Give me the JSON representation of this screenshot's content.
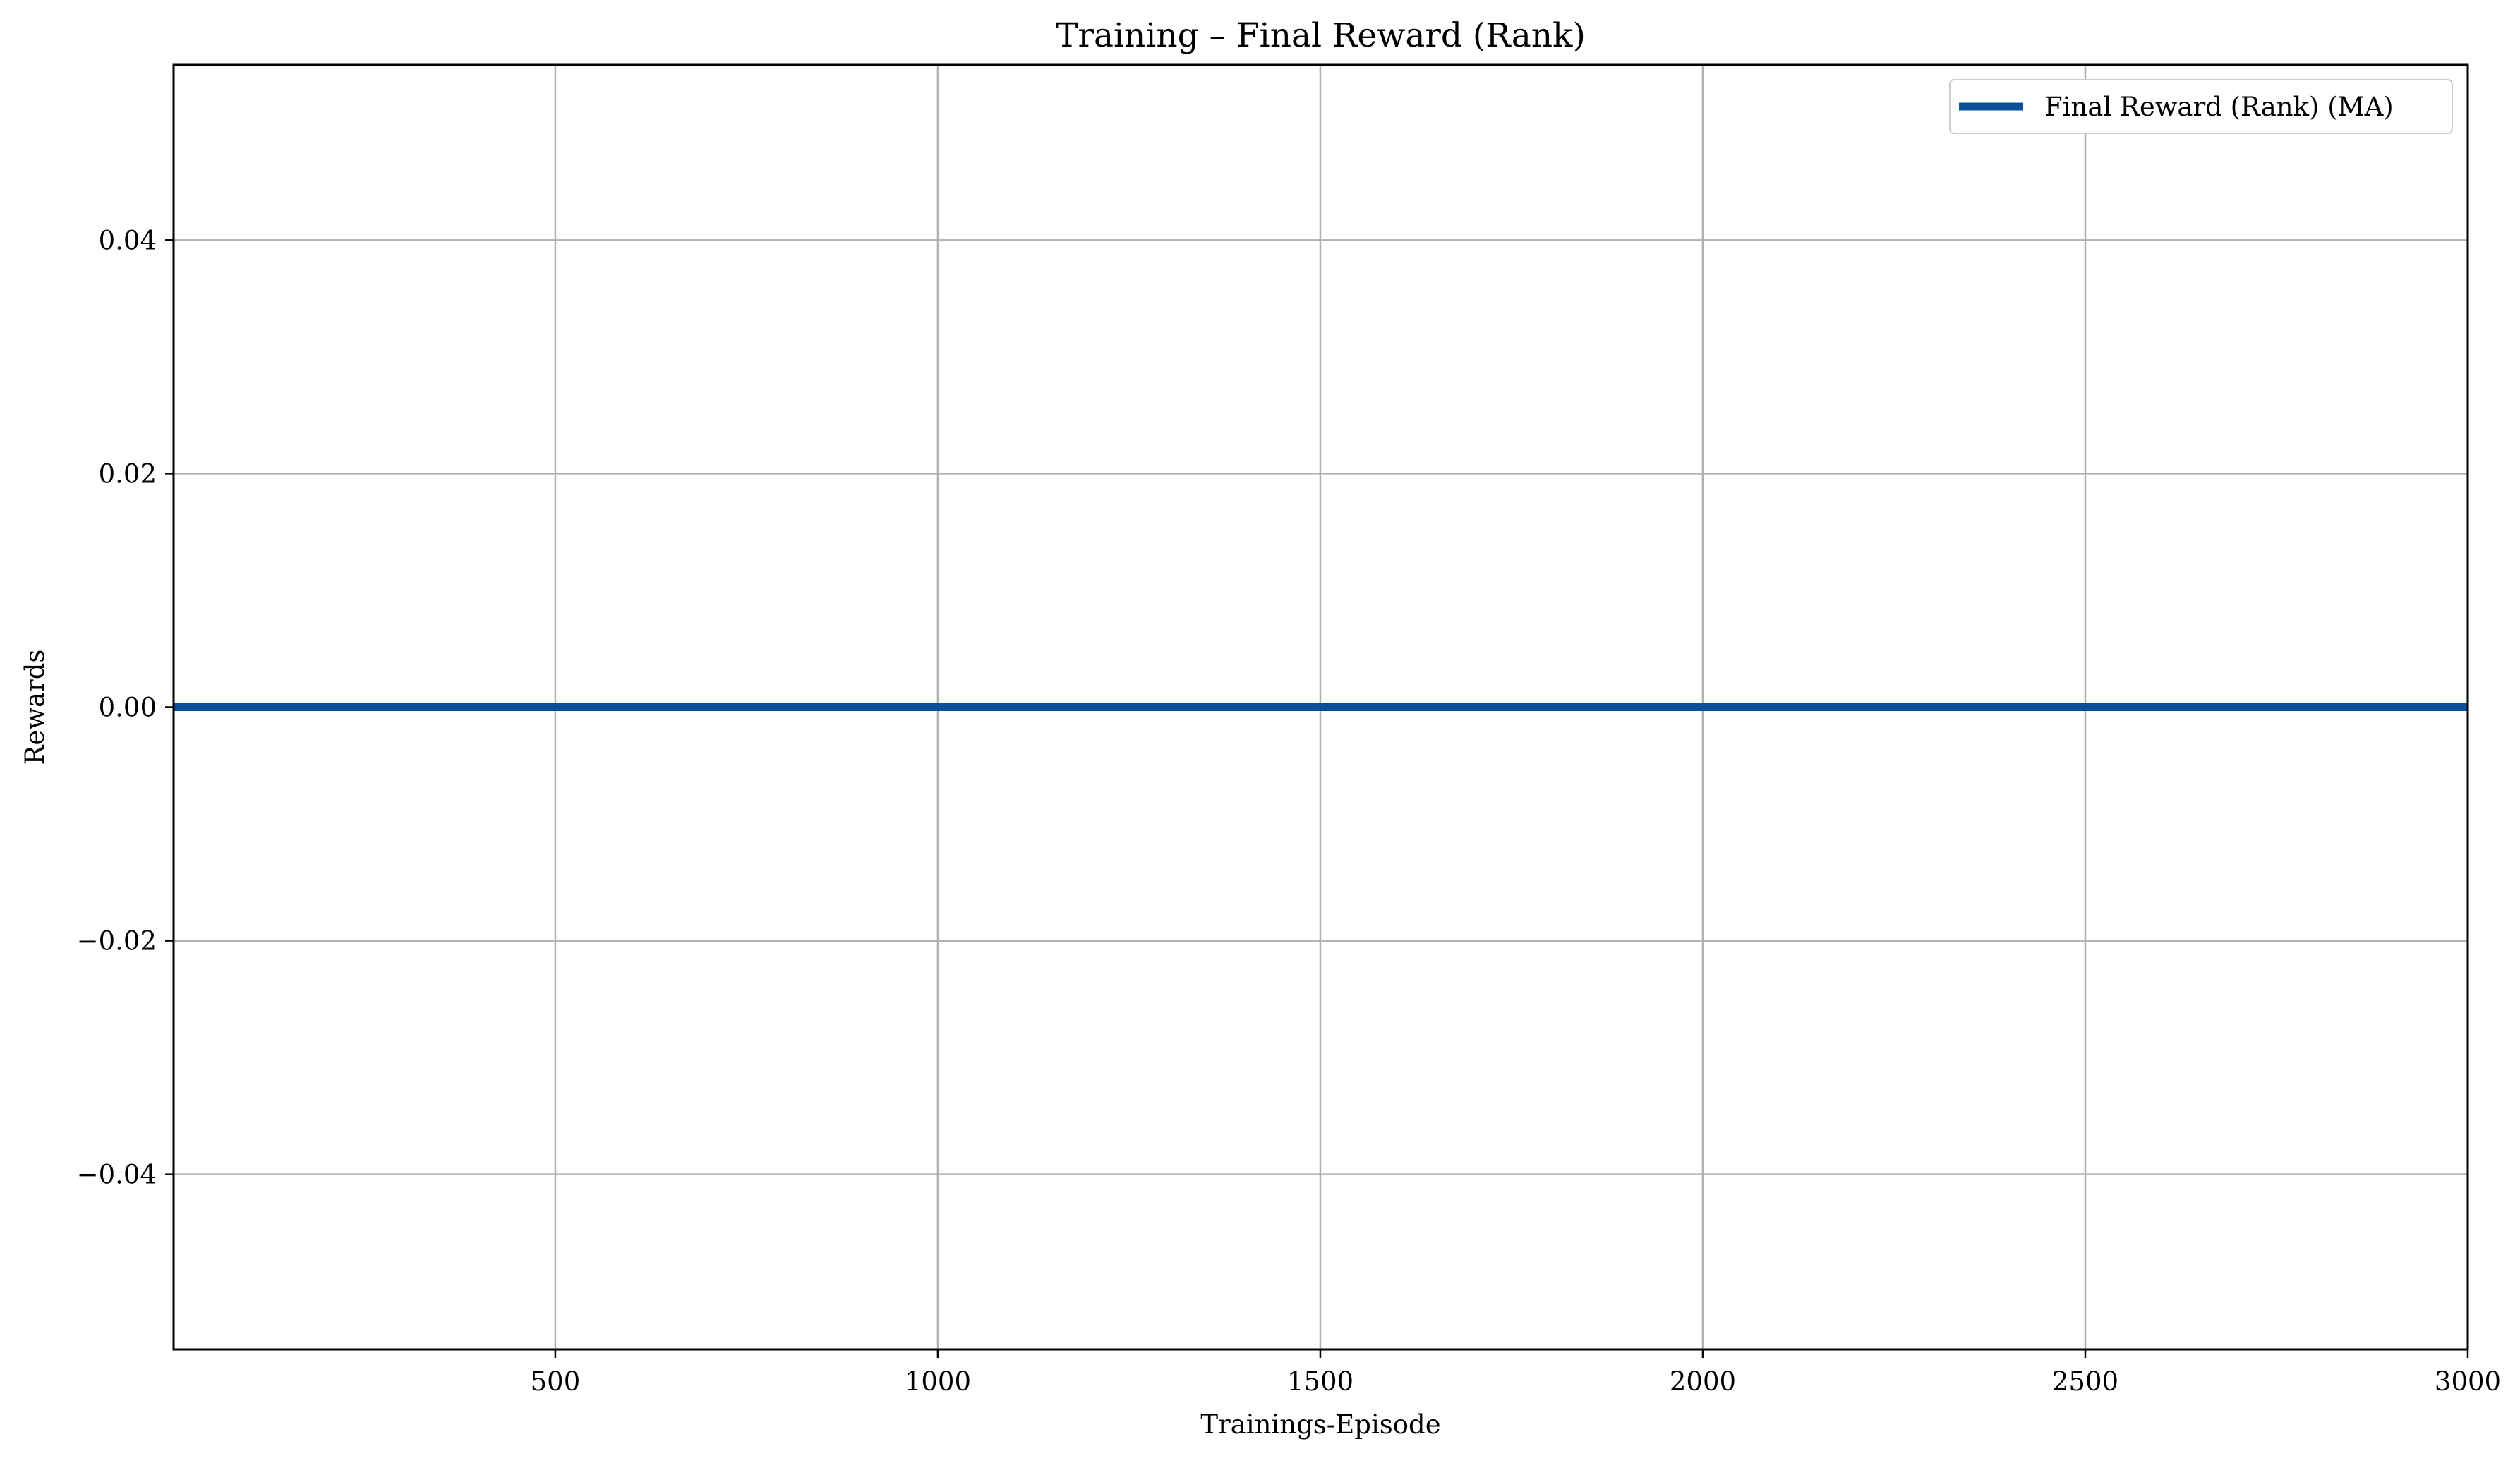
{
  "chart_data": {
    "type": "line",
    "title": "Training – Final Reward (Rank)",
    "xlabel": "Trainings-Episode",
    "ylabel": "Rewards",
    "xlim": [
      1,
      3000
    ],
    "ylim": [
      -0.055,
      0.055
    ],
    "x_ticks": [
      500,
      1000,
      1500,
      2000,
      2500,
      3000
    ],
    "x_tick_labels": [
      "500",
      "1000",
      "1500",
      "2000",
      "2500",
      "3000"
    ],
    "y_ticks": [
      -0.04,
      -0.02,
      0.0,
      0.02,
      0.04
    ],
    "y_tick_labels": [
      "−0.04",
      "−0.02",
      "0.00",
      "0.02",
      "0.04"
    ],
    "grid": true,
    "legend_position": "top-right",
    "series": [
      {
        "name": "Final Reward (Rank) (MA)",
        "color": "#0a4f9a",
        "x": [
          1,
          3000
        ],
        "y": [
          0.0,
          0.0
        ]
      }
    ]
  }
}
